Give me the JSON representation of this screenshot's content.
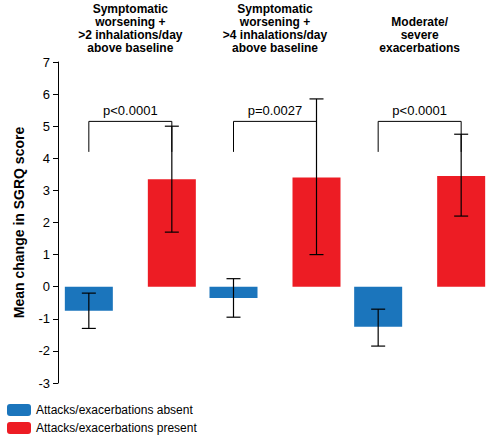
{
  "chart_data": {
    "type": "bar",
    "categories": [
      "Symptomatic\nworsening +\n>2 inhalations/day\nabove baseline",
      "Symptomatic\nworsening +\n>4 inhalations/day\nabove baseline",
      "Moderate/\nsevere\nexacerbations"
    ],
    "series": [
      {
        "name": "Attacks/exacerbations absent",
        "color": "#1b75bc",
        "values": [
          -0.75,
          -0.35,
          -1.25
        ],
        "error_low": [
          -1.3,
          -0.95,
          -1.85
        ],
        "error_high": [
          -0.2,
          0.25,
          -0.7
        ]
      },
      {
        "name": "Attacks/exacerbations present",
        "color": "#ed1c24",
        "values": [
          3.35,
          3.4,
          3.45
        ],
        "error_low": [
          1.7,
          1.0,
          2.2
        ],
        "error_high": [
          5.0,
          5.85,
          4.75
        ]
      }
    ],
    "brackets": [
      {
        "label": "p<0.0001",
        "top": 5.15,
        "bottom": 4.2
      },
      {
        "label": "p=0.0027",
        "top": 5.15,
        "bottom": 4.2
      },
      {
        "label": "p<0.0001",
        "top": 5.15,
        "bottom": 4.2
      }
    ],
    "y_label": "Mean change in SGRQ score",
    "ylim": [
      -3,
      7
    ],
    "yticks": [
      -3,
      -2,
      -1,
      0,
      1,
      2,
      3,
      4,
      5,
      6,
      7
    ],
    "grid": false,
    "legend": "bottom-left",
    "data_labels": false
  }
}
